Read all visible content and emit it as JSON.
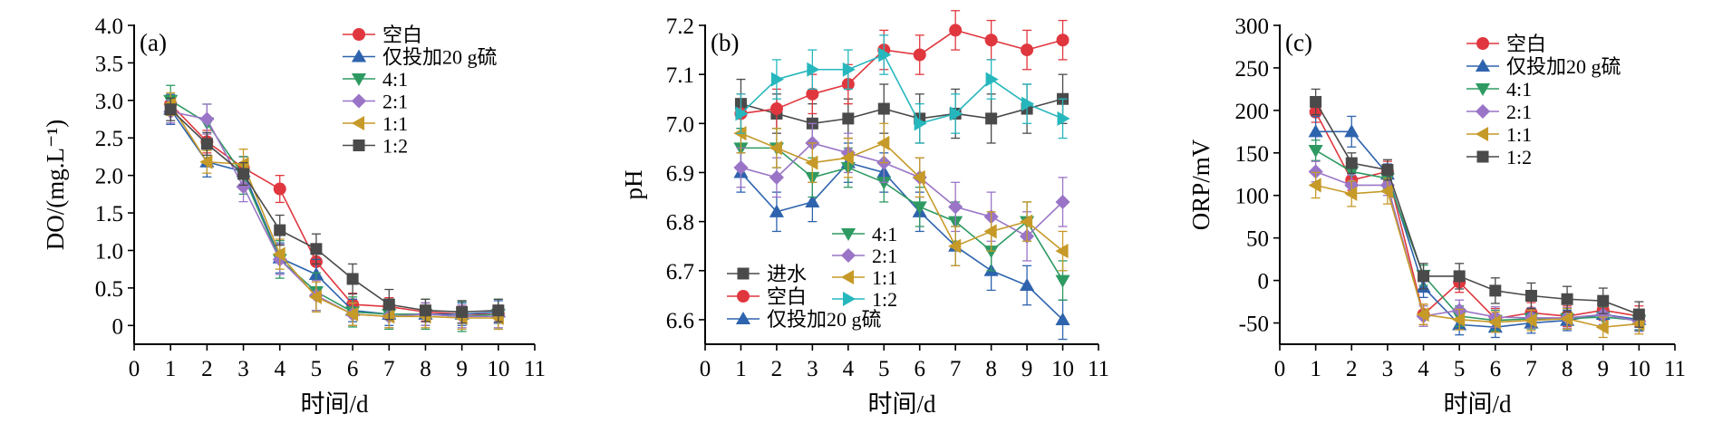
{
  "series_styles": [
    {
      "key": "blank",
      "color": "#e0373f",
      "marker": "circle"
    },
    {
      "key": "sulfur_only",
      "color": "#2e63ad",
      "marker": "triangle-up"
    },
    {
      "key": "r41",
      "color": "#2e9a62",
      "marker": "triangle-down"
    },
    {
      "key": "r21",
      "color": "#9a75c7",
      "marker": "diamond"
    },
    {
      "key": "r11",
      "color": "#c69a28",
      "marker": "triangle-left"
    },
    {
      "key": "r12",
      "color": "#26b7bd",
      "marker": "triangle-right"
    },
    {
      "key": "influent",
      "color": "#4a4a4a",
      "marker": "square"
    }
  ],
  "chart_data": [
    {
      "type": "line",
      "panel_label": "(a)",
      "xlabel": "时间/d",
      "ylabel": "DO/(mg.L⁻¹)",
      "xlim": [
        0,
        11
      ],
      "ylim": [
        -0.25,
        4.0
      ],
      "xticks": [
        "0",
        "1",
        "2",
        "3",
        "4",
        "5",
        "6",
        "7",
        "8",
        "9",
        "10",
        "11"
      ],
      "yticks": [
        "0",
        "0.5",
        "1.0",
        "1.5",
        "2.0",
        "2.5",
        "3.0",
        "3.5",
        "4.0"
      ],
      "legend_placement": "top-right",
      "series": [
        {
          "name": "空白",
          "key": "blank",
          "x": [
            1,
            2,
            3,
            4,
            5,
            6,
            7,
            8,
            9,
            10
          ],
          "values": [
            2.95,
            2.45,
            2.1,
            1.82,
            0.85,
            0.28,
            0.25,
            0.18,
            0.15,
            0.15
          ],
          "err": [
            0.12,
            0.15,
            0.15,
            0.18,
            0.2,
            0.15,
            0.12,
            0.12,
            0.12,
            0.12
          ]
        },
        {
          "name": "仅投加20 g硫",
          "key": "sulfur_only",
          "x": [
            1,
            2,
            3,
            4,
            5,
            6,
            7,
            8,
            9,
            10
          ],
          "values": [
            2.88,
            2.18,
            2.05,
            0.9,
            0.68,
            0.2,
            0.15,
            0.15,
            0.15,
            0.18
          ],
          "err": [
            0.2,
            0.2,
            0.2,
            0.2,
            0.2,
            0.15,
            0.15,
            0.15,
            0.15,
            0.15
          ]
        },
        {
          "name": "4:1",
          "key": "r41",
          "x": [
            1,
            2,
            3,
            4,
            5,
            6,
            7,
            8,
            9,
            10
          ],
          "values": [
            3.0,
            2.7,
            2.0,
            0.88,
            0.45,
            0.18,
            0.15,
            0.15,
            0.12,
            0.15
          ],
          "err": [
            0.2,
            0.25,
            0.25,
            0.25,
            0.25,
            0.2,
            0.2,
            0.2,
            0.2,
            0.2
          ]
        },
        {
          "name": "2:1",
          "key": "r21",
          "x": [
            1,
            2,
            3,
            4,
            5,
            6,
            7,
            8,
            9,
            10
          ],
          "values": [
            2.85,
            2.75,
            1.85,
            0.88,
            0.4,
            0.15,
            0.12,
            0.15,
            0.12,
            0.12
          ],
          "err": [
            0.15,
            0.2,
            0.2,
            0.2,
            0.2,
            0.15,
            0.15,
            0.15,
            0.15,
            0.15
          ]
        },
        {
          "name": "1:1",
          "key": "r11",
          "x": [
            1,
            2,
            3,
            4,
            5,
            6,
            7,
            8,
            9,
            10
          ],
          "values": [
            2.95,
            2.18,
            2.15,
            0.95,
            0.38,
            0.15,
            0.12,
            0.12,
            0.1,
            0.1
          ],
          "err": [
            0.15,
            0.15,
            0.2,
            0.2,
            0.2,
            0.15,
            0.15,
            0.15,
            0.15,
            0.15
          ]
        },
        {
          "name": "1:2",
          "key": "influent",
          "x": [
            1,
            2,
            3,
            4,
            5,
            6,
            7,
            8,
            9,
            10
          ],
          "values": [
            2.88,
            2.42,
            2.02,
            1.27,
            1.02,
            0.62,
            0.28,
            0.2,
            0.18,
            0.2
          ],
          "err": [
            0.15,
            0.15,
            0.15,
            0.2,
            0.2,
            0.2,
            0.2,
            0.15,
            0.15,
            0.15
          ]
        }
      ]
    },
    {
      "type": "line",
      "panel_label": "(b)",
      "xlabel": "时间/d",
      "ylabel": "pH",
      "xlim": [
        0,
        11
      ],
      "ylim": [
        6.55,
        7.2
      ],
      "xticks": [
        "0",
        "1",
        "2",
        "3",
        "4",
        "5",
        "6",
        "7",
        "8",
        "9",
        "10",
        "11"
      ],
      "yticks": [
        "6.6",
        "6.7",
        "6.8",
        "6.9",
        "7.0",
        "7.1",
        "7.2"
      ],
      "legend_placement": "bottom",
      "series": [
        {
          "name": "进水",
          "key": "influent",
          "x": [
            1,
            2,
            3,
            4,
            5,
            6,
            7,
            8,
            9,
            10
          ],
          "values": [
            7.04,
            7.02,
            7.0,
            7.01,
            7.03,
            7.01,
            7.02,
            7.01,
            7.03,
            7.05
          ],
          "err": [
            0.05,
            0.04,
            0.04,
            0.04,
            0.05,
            0.05,
            0.05,
            0.05,
            0.05,
            0.05
          ]
        },
        {
          "name": "空白",
          "key": "blank",
          "x": [
            1,
            2,
            3,
            4,
            5,
            6,
            7,
            8,
            9,
            10
          ],
          "values": [
            7.02,
            7.03,
            7.06,
            7.08,
            7.15,
            7.14,
            7.19,
            7.17,
            7.15,
            7.17
          ],
          "err": [
            0.04,
            0.04,
            0.04,
            0.04,
            0.04,
            0.04,
            0.04,
            0.04,
            0.04,
            0.04
          ]
        },
        {
          "name": "仅投加20 g硫",
          "key": "sulfur_only",
          "x": [
            1,
            2,
            3,
            4,
            5,
            6,
            7,
            8,
            9,
            10
          ],
          "values": [
            6.9,
            6.82,
            6.84,
            6.92,
            6.9,
            6.82,
            6.75,
            6.7,
            6.67,
            6.6
          ],
          "err": [
            0.04,
            0.04,
            0.04,
            0.04,
            0.04,
            0.04,
            0.04,
            0.04,
            0.04,
            0.04
          ]
        },
        {
          "name": "4:1",
          "key": "r41",
          "x": [
            1,
            2,
            3,
            4,
            5,
            6,
            7,
            8,
            9,
            10
          ],
          "values": [
            6.95,
            6.95,
            6.89,
            6.91,
            6.88,
            6.83,
            6.8,
            6.74,
            6.8,
            6.68
          ],
          "err": [
            0.04,
            0.04,
            0.04,
            0.04,
            0.04,
            0.04,
            0.04,
            0.04,
            0.04,
            0.04
          ]
        },
        {
          "name": "2:1",
          "key": "r21",
          "x": [
            1,
            2,
            3,
            4,
            5,
            6,
            7,
            8,
            9,
            10
          ],
          "values": [
            6.91,
            6.89,
            6.96,
            6.94,
            6.92,
            6.89,
            6.83,
            6.81,
            6.77,
            6.84
          ],
          "err": [
            0.04,
            0.04,
            0.04,
            0.04,
            0.04,
            0.04,
            0.05,
            0.05,
            0.05,
            0.05
          ]
        },
        {
          "name": "1:1",
          "key": "r11",
          "x": [
            1,
            2,
            3,
            4,
            5,
            6,
            7,
            8,
            9,
            10
          ],
          "values": [
            6.98,
            6.95,
            6.92,
            6.93,
            6.96,
            6.89,
            6.75,
            6.78,
            6.8,
            6.74
          ],
          "err": [
            0.04,
            0.04,
            0.04,
            0.04,
            0.04,
            0.04,
            0.04,
            0.04,
            0.04,
            0.04
          ]
        },
        {
          "name": "1:2",
          "key": "r12",
          "x": [
            1,
            2,
            3,
            4,
            5,
            6,
            7,
            8,
            9,
            10
          ],
          "values": [
            7.02,
            7.09,
            7.11,
            7.11,
            7.14,
            7.0,
            7.02,
            7.09,
            7.04,
            7.01
          ],
          "err": [
            0.04,
            0.04,
            0.04,
            0.04,
            0.04,
            0.04,
            0.04,
            0.04,
            0.04,
            0.04
          ]
        }
      ]
    },
    {
      "type": "line",
      "panel_label": "(c)",
      "xlabel": "时间/d",
      "ylabel": "ORP/mV",
      "xlim": [
        0,
        11
      ],
      "ylim": [
        -75,
        300
      ],
      "xticks": [
        "0",
        "1",
        "2",
        "3",
        "4",
        "5",
        "6",
        "7",
        "8",
        "9",
        "10",
        "11"
      ],
      "yticks": [
        "-50",
        "0",
        "50",
        "100",
        "150",
        "200",
        "250",
        "300"
      ],
      "legend_placement": "top-right",
      "series": [
        {
          "name": "空白",
          "key": "blank",
          "x": [
            1,
            2,
            3,
            4,
            5,
            6,
            7,
            8,
            9,
            10
          ],
          "values": [
            198,
            118,
            128,
            -40,
            -2,
            -45,
            -38,
            -42,
            -35,
            -42
          ],
          "err": [
            12,
            12,
            12,
            12,
            12,
            12,
            12,
            12,
            12,
            12
          ]
        },
        {
          "name": "仅投加20 g硫",
          "key": "sulfur_only",
          "x": [
            1,
            2,
            3,
            4,
            5,
            6,
            7,
            8,
            9,
            10
          ],
          "values": [
            175,
            175,
            125,
            -8,
            -52,
            -55,
            -50,
            -47,
            -40,
            -46
          ],
          "err": [
            18,
            18,
            12,
            12,
            12,
            12,
            12,
            12,
            12,
            12
          ]
        },
        {
          "name": "4:1",
          "key": "r41",
          "x": [
            1,
            2,
            3,
            4,
            5,
            6,
            7,
            8,
            9,
            10
          ],
          "values": [
            153,
            128,
            120,
            6,
            -42,
            -47,
            -45,
            -45,
            -43,
            -47
          ],
          "err": [
            12,
            12,
            12,
            12,
            12,
            12,
            12,
            12,
            12,
            12
          ]
        },
        {
          "name": "2:1",
          "key": "r21",
          "x": [
            1,
            2,
            3,
            4,
            5,
            6,
            7,
            8,
            9,
            10
          ],
          "values": [
            128,
            112,
            112,
            -42,
            -35,
            -43,
            -44,
            -44,
            -40,
            -48
          ],
          "err": [
            12,
            12,
            12,
            12,
            12,
            12,
            12,
            12,
            12,
            12
          ]
        },
        {
          "name": "1:1",
          "key": "r11",
          "x": [
            1,
            2,
            3,
            4,
            5,
            6,
            7,
            8,
            9,
            10
          ],
          "values": [
            112,
            102,
            105,
            -40,
            -46,
            -49,
            -47,
            -45,
            -55,
            -51
          ],
          "err": [
            15,
            15,
            15,
            12,
            12,
            12,
            12,
            12,
            12,
            12
          ]
        },
        {
          "name": "1:2",
          "key": "influent",
          "x": [
            1,
            2,
            3,
            4,
            5,
            6,
            7,
            8,
            9,
            10
          ],
          "values": [
            210,
            138,
            130,
            5,
            5,
            -12,
            -18,
            -22,
            -24,
            -40
          ],
          "err": [
            15,
            12,
            12,
            15,
            15,
            15,
            15,
            15,
            15,
            15
          ]
        }
      ]
    }
  ]
}
